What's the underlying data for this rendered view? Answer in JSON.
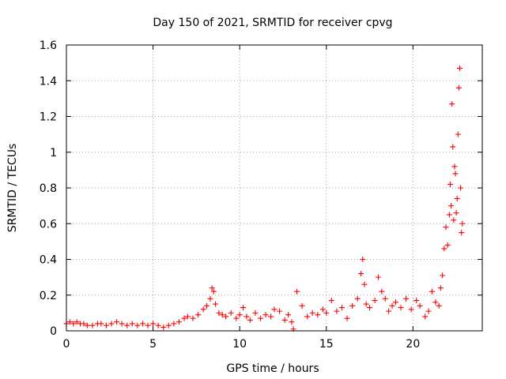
{
  "chart_data": {
    "type": "scatter",
    "title": "Day 150 of 2021, SRMTID for receiver cpvg",
    "xlabel": "GPS time / hours",
    "ylabel": "SRMTID / TECUs",
    "xlim": [
      0,
      24
    ],
    "ylim": [
      0,
      1.6
    ],
    "xticks": [
      0,
      5,
      10,
      15,
      20
    ],
    "xtick_labels": [
      "0",
      "5",
      "10",
      "15",
      "20"
    ],
    "yticks": [
      0,
      0.2,
      0.4,
      0.6,
      0.8,
      1.0,
      1.2,
      1.4,
      1.6
    ],
    "ytick_labels": [
      "0",
      "0.2",
      "0.4",
      "0.6",
      "0.8",
      "1",
      "1.2",
      "1.4",
      "1.6"
    ],
    "grid": true,
    "marker": "+",
    "series_color": "#ff0000",
    "series": [
      {
        "name": "SRMTID",
        "x": [
          0.0,
          0.2,
          0.4,
          0.6,
          0.8,
          1.0,
          1.2,
          1.5,
          1.8,
          2.0,
          2.3,
          2.6,
          2.9,
          3.2,
          3.5,
          3.8,
          4.1,
          4.4,
          4.7,
          5.0,
          5.3,
          5.6,
          5.9,
          6.2,
          6.5,
          6.8,
          7.0,
          7.3,
          7.6,
          7.9,
          8.1,
          8.3,
          8.4,
          8.5,
          8.6,
          8.8,
          9.0,
          9.2,
          9.5,
          9.8,
          10.0,
          10.2,
          10.4,
          10.6,
          10.9,
          11.2,
          11.5,
          11.8,
          12.0,
          12.3,
          12.6,
          12.8,
          13.0,
          13.1,
          13.3,
          13.6,
          13.9,
          14.2,
          14.5,
          14.8,
          15.0,
          15.3,
          15.6,
          15.9,
          16.2,
          16.5,
          16.8,
          17.0,
          17.1,
          17.2,
          17.3,
          17.5,
          17.8,
          18.0,
          18.2,
          18.4,
          18.6,
          18.8,
          19.0,
          19.3,
          19.6,
          19.9,
          20.2,
          20.4,
          20.7,
          20.9,
          21.1,
          21.3,
          21.5,
          21.6,
          21.7,
          21.8,
          21.9,
          22.0,
          22.1,
          22.15,
          22.2,
          22.25,
          22.3,
          22.35,
          22.4,
          22.45,
          22.5,
          22.55,
          22.6,
          22.65,
          22.7,
          22.75,
          22.8,
          22.85
        ],
        "y": [
          0.04,
          0.05,
          0.04,
          0.05,
          0.04,
          0.04,
          0.03,
          0.03,
          0.04,
          0.04,
          0.03,
          0.04,
          0.05,
          0.04,
          0.03,
          0.04,
          0.03,
          0.04,
          0.03,
          0.04,
          0.03,
          0.02,
          0.03,
          0.04,
          0.05,
          0.07,
          0.08,
          0.07,
          0.09,
          0.12,
          0.14,
          0.18,
          0.24,
          0.22,
          0.15,
          0.1,
          0.09,
          0.08,
          0.1,
          0.07,
          0.09,
          0.13,
          0.08,
          0.06,
          0.1,
          0.07,
          0.09,
          0.08,
          0.12,
          0.11,
          0.06,
          0.09,
          0.05,
          0.01,
          0.22,
          0.14,
          0.08,
          0.1,
          0.09,
          0.12,
          0.1,
          0.17,
          0.11,
          0.13,
          0.07,
          0.14,
          0.18,
          0.32,
          0.4,
          0.26,
          0.15,
          0.13,
          0.17,
          0.3,
          0.22,
          0.18,
          0.11,
          0.14,
          0.16,
          0.13,
          0.18,
          0.12,
          0.17,
          0.14,
          0.08,
          0.11,
          0.22,
          0.16,
          0.14,
          0.24,
          0.31,
          0.46,
          0.58,
          0.48,
          0.65,
          0.82,
          0.7,
          1.27,
          1.03,
          0.62,
          0.92,
          0.88,
          0.66,
          0.74,
          1.1,
          1.36,
          1.47,
          0.8,
          0.55,
          0.6
        ]
      }
    ]
  }
}
